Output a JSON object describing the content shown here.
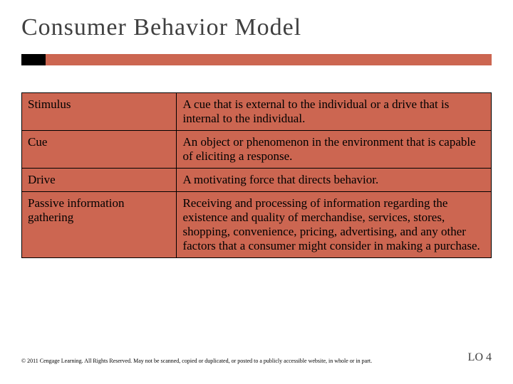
{
  "title": {
    "text": "Consumer Behavior Model",
    "fontsize": 34,
    "color": "#404040"
  },
  "accent": {
    "bar_color": "#cc6651",
    "square_color": "#000000"
  },
  "table": {
    "type": "table",
    "cell_bg": "#cc6651",
    "cell_fontsize": 17,
    "border_color": "#000000",
    "rows": [
      {
        "term": "Stimulus",
        "definition": "A cue that is external to the individual or a drive that is internal to the individual."
      },
      {
        "term": "Cue",
        "definition": "An object or phenomenon in the environment that is capable of eliciting a response."
      },
      {
        "term": "Drive",
        "definition": "A motivating force that directs behavior."
      },
      {
        "term": "Passive  information gathering",
        "definition": "Receiving and processing of information regarding the existence and quality of merchandise, services, stores, shopping, convenience, pricing, advertising, and any other factors that a consumer might consider in making a purchase."
      }
    ]
  },
  "footer": {
    "copyright": "© 2011 Cengage Learning. All Rights Reserved. May not be scanned, copied or duplicated, or posted to a publicly accessible website, in whole or in part.",
    "copyright_fontsize": 8,
    "lo_label": "LO 4",
    "lo_fontsize": 16
  }
}
